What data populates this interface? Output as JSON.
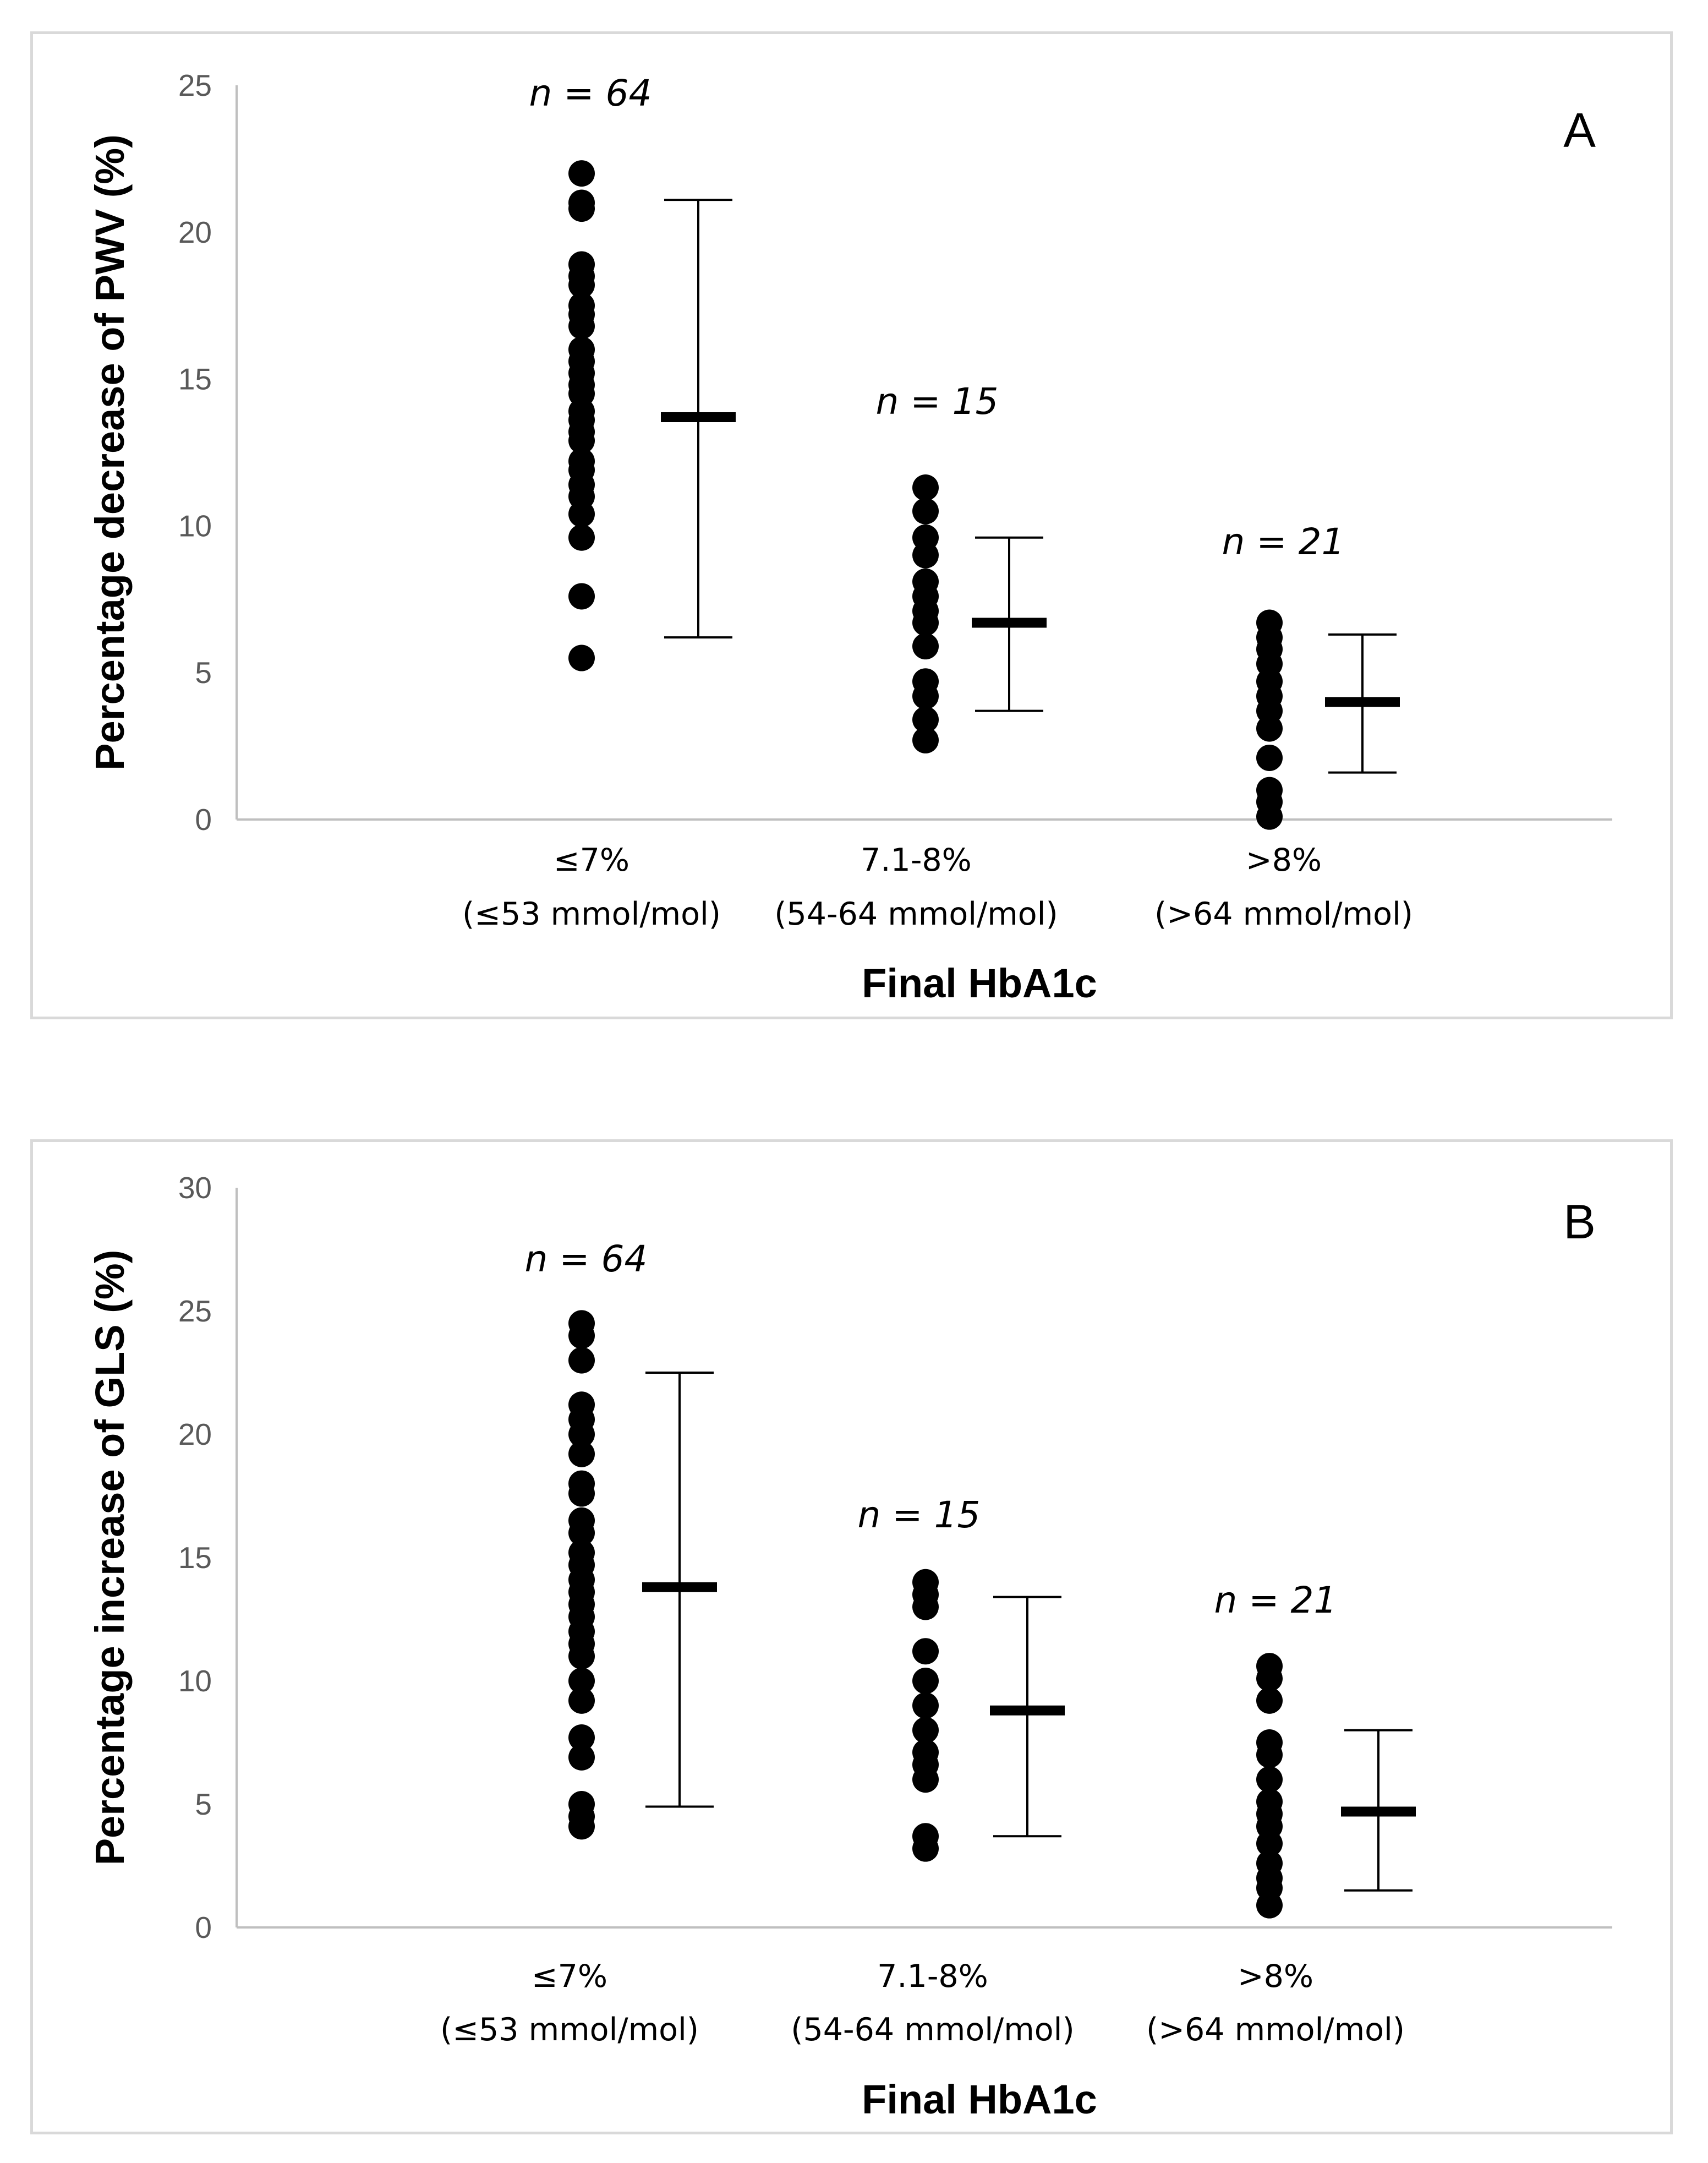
{
  "chart_data": [
    {
      "type": "scatter",
      "panel_label": "A",
      "xlabel": "Final HbA1c",
      "ylabel": "Percentage decrease of PWV (%)",
      "ylim": [
        0,
        25
      ],
      "yticks": [
        "0",
        "5",
        "10",
        "15",
        "20",
        "25"
      ],
      "grid": false,
      "categories": [
        {
          "line1": "≤7%",
          "line2": "(≤53 mmol/mol)"
        },
        {
          "line1": "7.1-8%",
          "line2": "(54-64 mmol/mol)"
        },
        {
          "line1": ">8%",
          "line2": "(>64 mmol/mol)"
        }
      ],
      "groups": [
        {
          "n_label": "n = 64",
          "points": [
            22.0,
            21.0,
            20.8,
            18.9,
            18.5,
            18.2,
            17.5,
            17.2,
            16.8,
            16.0,
            15.6,
            15.2,
            14.8,
            14.5,
            13.9,
            13.6,
            13.2,
            12.9,
            12.2,
            11.9,
            11.4,
            11.0,
            10.4,
            9.6,
            7.6,
            5.5
          ],
          "mean": 13.7,
          "err_low": 6.2,
          "err_high": 21.1
        },
        {
          "n_label": "n = 15",
          "points": [
            11.3,
            10.5,
            9.6,
            9.0,
            8.1,
            7.6,
            7.1,
            6.7,
            5.9,
            4.7,
            4.2,
            3.4,
            2.7
          ],
          "mean": 6.7,
          "err_low": 3.7,
          "err_high": 9.6
        },
        {
          "n_label": "n = 21",
          "points": [
            6.7,
            6.2,
            5.8,
            5.3,
            4.7,
            4.2,
            3.7,
            3.1,
            2.1,
            1.0,
            0.6,
            0.1
          ],
          "mean": 4.0,
          "err_low": 1.6,
          "err_high": 6.3
        }
      ]
    },
    {
      "type": "scatter",
      "panel_label": "B",
      "xlabel": "Final HbA1c",
      "ylabel": "Percentage increase of GLS (%)",
      "ylim": [
        0,
        30
      ],
      "yticks": [
        "0",
        "5",
        "10",
        "15",
        "20",
        "25",
        "30"
      ],
      "grid": false,
      "categories": [
        {
          "line1": "≤7%",
          "line2": "(≤53 mmol/mol)"
        },
        {
          "line1": "7.1-8%",
          "line2": "(54-64 mmol/mol)"
        },
        {
          "line1": ">8%",
          "line2": "(>64 mmol/mol)"
        }
      ],
      "groups": [
        {
          "n_label": "n = 64",
          "points": [
            24.5,
            24.0,
            23.0,
            21.2,
            20.6,
            20.0,
            19.2,
            18.0,
            17.6,
            16.5,
            16.0,
            15.2,
            14.7,
            14.1,
            13.6,
            13.1,
            12.6,
            12.0,
            11.5,
            11.0,
            10.0,
            9.2,
            7.7,
            6.9,
            5.0,
            4.5,
            4.1
          ],
          "mean": 13.8,
          "err_low": 4.9,
          "err_high": 22.5
        },
        {
          "n_label": "n = 15",
          "points": [
            14.0,
            13.5,
            13.0,
            11.2,
            10.0,
            9.0,
            8.0,
            7.1,
            6.6,
            6.0,
            3.7,
            3.2
          ],
          "mean": 8.8,
          "err_low": 3.7,
          "err_high": 13.4
        },
        {
          "n_label": "n = 21",
          "points": [
            10.6,
            10.1,
            9.2,
            7.5,
            7.0,
            6.0,
            5.1,
            4.6,
            4.1,
            3.4,
            2.6,
            2.0,
            1.6,
            0.9
          ],
          "mean": 4.7,
          "err_low": 1.5,
          "err_high": 8.0
        }
      ]
    }
  ]
}
